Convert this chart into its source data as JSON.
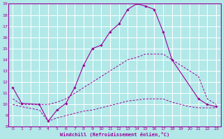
{
  "xlabel": "Windchill (Refroidissement éolien,°C)",
  "background_color": "#b2e8e8",
  "grid_color": "#ffffff",
  "line_color": "#990099",
  "xlim": [
    -0.5,
    23.5
  ],
  "ylim": [
    8,
    19
  ],
  "xticks": [
    0,
    1,
    2,
    3,
    4,
    5,
    6,
    7,
    8,
    9,
    10,
    11,
    12,
    13,
    14,
    15,
    16,
    17,
    18,
    19,
    20,
    21,
    22,
    23
  ],
  "yticks": [
    8,
    9,
    10,
    11,
    12,
    13,
    14,
    15,
    16,
    17,
    18,
    19
  ],
  "line1_x": [
    0,
    1,
    3,
    4,
    5,
    6,
    7,
    8,
    9,
    10,
    11,
    12,
    13,
    14,
    15,
    16,
    17,
    18,
    21,
    22,
    23
  ],
  "line1_y": [
    11.5,
    10.1,
    10.0,
    8.5,
    9.5,
    10.1,
    11.5,
    13.5,
    15.0,
    15.3,
    16.5,
    17.2,
    18.5,
    19.0,
    18.8,
    18.5,
    16.5,
    14.0,
    10.5,
    10.0,
    9.8
  ],
  "line2_x": [
    0,
    1,
    3,
    4,
    5,
    6,
    7,
    8,
    9,
    10,
    11,
    12,
    13,
    14,
    15,
    16,
    17,
    18,
    19,
    20,
    21,
    22,
    23
  ],
  "line2_y": [
    10.5,
    10.0,
    10.0,
    10.0,
    10.2,
    10.5,
    11.0,
    11.5,
    12.0,
    12.5,
    13.0,
    13.5,
    14.0,
    14.2,
    14.5,
    14.5,
    14.5,
    14.0,
    13.5,
    13.0,
    12.5,
    10.5,
    10.0
  ],
  "line3_x": [
    0,
    1,
    3,
    4,
    5,
    6,
    7,
    8,
    9,
    10,
    11,
    12,
    13,
    14,
    15,
    16,
    17,
    18,
    19,
    20,
    21,
    22,
    23
  ],
  "line3_y": [
    10.0,
    9.8,
    9.5,
    8.5,
    8.8,
    9.0,
    9.2,
    9.4,
    9.5,
    9.7,
    9.9,
    10.1,
    10.3,
    10.4,
    10.5,
    10.5,
    10.5,
    10.2,
    10.0,
    9.8,
    9.7,
    9.7,
    9.7
  ]
}
